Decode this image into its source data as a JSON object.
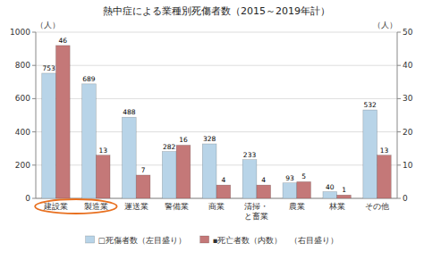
{
  "chart_data": {
    "type": "bar",
    "title": "熱中症による業種別死傷者数（2015～2019年計）",
    "categories": [
      "建設業",
      "製造業",
      "運送業",
      "警備業",
      "商業",
      "清掃・\nと畜業",
      "農業",
      "林業",
      "その他"
    ],
    "series": [
      {
        "name": "□死傷者数（左目盛り）",
        "color": "#b8d4e8",
        "values": [
          753,
          689,
          488,
          282,
          328,
          233,
          93,
          40,
          532
        ]
      },
      {
        "name": "▪死亡者数（内数）　（右目盛り）",
        "color": "#c47878",
        "values": [
          46,
          13,
          7,
          16,
          4,
          4,
          5,
          1,
          13
        ],
        "axis": "y2"
      }
    ],
    "ylabel": "（人）",
    "y2label": "（人）",
    "ylim": [
      0,
      1000
    ],
    "yticks": [
      0,
      200,
      400,
      600,
      800,
      1000
    ],
    "y2lim": [
      0,
      50
    ],
    "y2ticks": [
      0,
      10,
      20,
      30,
      40,
      50
    ],
    "grid": true,
    "legend": "bottom",
    "data_labels": true
  }
}
